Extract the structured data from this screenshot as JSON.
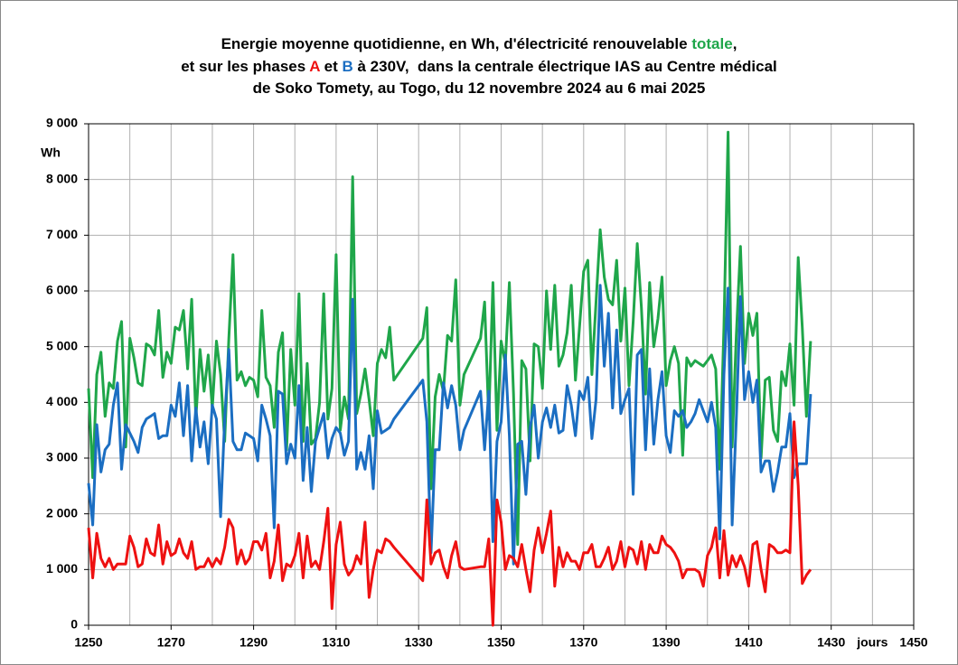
{
  "chart_data": {
    "type": "line",
    "title_lines": [
      [
        "Energie moyenne quotidienne, en Wh, d'électricité renouvelable ",
        "totale",
        ","
      ],
      [
        "et sur les phases ",
        "A",
        " et ",
        "B",
        " à 230V,  dans la centrale électrique IAS au Centre médical"
      ],
      [
        "de Soko Tomety, au Togo, du 12 novembre 2024 au 6 mai 2025"
      ]
    ],
    "ylabel": "Wh",
    "xlabel": "jours",
    "xlim": [
      1250,
      1450
    ],
    "xticks": [
      1250,
      1270,
      1290,
      1310,
      1330,
      1350,
      1370,
      1390,
      1410,
      1430,
      1450
    ],
    "xminor": [
      1260,
      1280,
      1300,
      1320,
      1340,
      1360,
      1380,
      1400,
      1420,
      1440
    ],
    "ylim": [
      0,
      9000
    ],
    "yticks": [
      0,
      {
        "value": 1000,
        "label": "1 000"
      },
      {
        "value": 2000,
        "label": "2 000"
      },
      {
        "value": 3000,
        "label": "3 000"
      },
      {
        "value": 4000,
        "label": "4 000"
      },
      {
        "value": 5000,
        "label": "5 000"
      },
      {
        "value": 6000,
        "label": "6 000"
      },
      {
        "value": 7000,
        "label": "7 000"
      },
      {
        "value": 8000,
        "label": "8 000"
      },
      {
        "value": 9000,
        "label": "9 000"
      }
    ],
    "grid": true,
    "x": [
      1250,
      1251,
      1252,
      1253,
      1254,
      1255,
      1256,
      1257,
      1258,
      1259,
      1260,
      1261,
      1262,
      1263,
      1264,
      1265,
      1266,
      1267,
      1268,
      1269,
      1270,
      1271,
      1272,
      1273,
      1274,
      1275,
      1276,
      1277,
      1278,
      1279,
      1280,
      1281,
      1282,
      1283,
      1284,
      1285,
      1286,
      1287,
      1288,
      1289,
      1290,
      1291,
      1292,
      1293,
      1294,
      1295,
      1296,
      1297,
      1298,
      1299,
      1300,
      1301,
      1302,
      1303,
      1304,
      1305,
      1306,
      1307,
      1308,
      1309,
      1310,
      1311,
      1312,
      1313,
      1314,
      1315,
      1316,
      1317,
      1318,
      1319,
      1320,
      1321,
      1322,
      1323,
      1324,
      1331,
      1332,
      1333,
      1334,
      1335,
      1336,
      1337,
      1338,
      1339,
      1340,
      1341,
      1345,
      1346,
      1347,
      1348,
      1349,
      1350,
      1351,
      1352,
      1353,
      1354,
      1355,
      1356,
      1357,
      1358,
      1359,
      1360,
      1361,
      1362,
      1363,
      1364,
      1365,
      1366,
      1367,
      1368,
      1369,
      1370,
      1371,
      1372,
      1373,
      1374,
      1375,
      1376,
      1377,
      1378,
      1379,
      1380,
      1381,
      1382,
      1383,
      1384,
      1385,
      1386,
      1387,
      1388,
      1389,
      1390,
      1391,
      1392,
      1393,
      1394,
      1395,
      1396,
      1397,
      1398,
      1399,
      1400,
      1401,
      1402,
      1403,
      1404,
      1405,
      1406,
      1407,
      1408,
      1409,
      1410,
      1411,
      1412,
      1413,
      1414,
      1415,
      1416,
      1417,
      1418,
      1419,
      1420,
      1421,
      1422,
      1423,
      1424,
      1425
    ],
    "series": [
      {
        "color": "#1fa64a",
        "values": [
          4250,
          2650,
          4500,
          4900,
          3750,
          4350,
          4250,
          5100,
          5450,
          3200,
          5150,
          4800,
          4350,
          4300,
          5050,
          5000,
          4850,
          5650,
          4450,
          4900,
          4700,
          5350,
          5300,
          5650,
          4600,
          5850,
          3700,
          4950,
          4200,
          4850,
          3900,
          5100,
          4500,
          3300,
          5150,
          6650,
          4400,
          4550,
          4300,
          4450,
          4400,
          4100,
          5650,
          4450,
          4300,
          3550,
          4900,
          5250,
          3150,
          4950,
          3950,
          5950,
          3300,
          4700,
          3250,
          3350,
          4000,
          5950,
          3700,
          4250,
          6650,
          3500,
          4100,
          3700,
          8050,
          3800,
          4150,
          4600,
          4050,
          3400,
          4700,
          4950,
          4800,
          5350,
          4400,
          5150,
          5700,
          2450,
          4100,
          4500,
          4200,
          5200,
          5100,
          6200,
          3950,
          4500,
          5150,
          5800,
          3700,
          6150,
          3500,
          5100,
          4700,
          6150,
          4150,
          1450,
          4750,
          4600,
          2950,
          5050,
          5000,
          4250,
          6000,
          4950,
          6100,
          4650,
          4850,
          5250,
          6100,
          4400,
          5350,
          6350,
          6550,
          4500,
          5800,
          7100,
          6250,
          5850,
          5750,
          6550,
          5100,
          6050,
          4300,
          5450,
          6850,
          5700,
          4150,
          6150,
          5000,
          5500,
          6250,
          4300,
          4750,
          5000,
          4700,
          3050,
          4800,
          4650,
          4750,
          4700,
          4650,
          4750,
          4850,
          4600,
          2800,
          5350,
          8850,
          3200,
          5200,
          6800,
          4700,
          5600,
          5200,
          5600,
          3000,
          4400,
          4450,
          3500,
          3300,
          4550,
          4300,
          5050,
          3950,
          6600,
          5350,
          3750,
          5100
        ]
      },
      {
        "color": "#1b6ec2",
        "values": [
          2550,
          1800,
          3600,
          2750,
          3150,
          3250,
          3950,
          4350,
          2800,
          3600,
          3450,
          3300,
          3100,
          3550,
          3700,
          3750,
          3800,
          3350,
          3400,
          3400,
          3950,
          3750,
          4350,
          3400,
          4300,
          2950,
          3900,
          3200,
          3650,
          2900,
          3950,
          3700,
          1950,
          3700,
          4950,
          3300,
          3150,
          3150,
          3450,
          3400,
          3350,
          2950,
          3950,
          3700,
          3400,
          1750,
          4200,
          4150,
          2900,
          3250,
          3000,
          4300,
          2600,
          3550,
          2400,
          3300,
          3550,
          3800,
          3000,
          3350,
          3550,
          3450,
          3050,
          3300,
          5850,
          2800,
          3100,
          2800,
          3400,
          2450,
          3850,
          3450,
          3500,
          3550,
          3700,
          4400,
          3650,
          1300,
          3150,
          3150,
          4350,
          3900,
          4300,
          3950,
          3150,
          3500,
          4200,
          3150,
          4200,
          1500,
          3300,
          3650,
          4850,
          3400,
          1100,
          3250,
          3300,
          2350,
          3550,
          3950,
          3000,
          3650,
          3900,
          3550,
          3950,
          3450,
          3500,
          4300,
          3950,
          3400,
          4200,
          4050,
          4450,
          3350,
          4050,
          6100,
          4650,
          5600,
          3900,
          5300,
          3800,
          4050,
          4250,
          2350,
          4850,
          4950,
          3150,
          4600,
          3250,
          4050,
          4550,
          3400,
          3100,
          3850,
          3750,
          3850,
          3550,
          3650,
          3800,
          4050,
          3850,
          3650,
          4000,
          3550,
          1550,
          4500,
          6050,
          1800,
          3700,
          5900,
          4050,
          4550,
          4000,
          4400,
          2750,
          2950,
          2950,
          2400,
          2750,
          3200,
          3200,
          3800,
          2650,
          2900,
          2900,
          2900,
          4150
        ]
      },
      {
        "color": "#ee1111",
        "values": [
          1750,
          850,
          1650,
          1200,
          1050,
          1200,
          1000,
          1100,
          1100,
          1100,
          1600,
          1400,
          1050,
          1100,
          1550,
          1300,
          1250,
          1800,
          1100,
          1500,
          1250,
          1300,
          1550,
          1300,
          1200,
          1500,
          1000,
          1050,
          1050,
          1200,
          1050,
          1200,
          1100,
          1400,
          1900,
          1750,
          1100,
          1350,
          1100,
          1200,
          1500,
          1500,
          1350,
          1650,
          850,
          1150,
          1800,
          800,
          1100,
          1050,
          1250,
          1650,
          850,
          1600,
          1050,
          1150,
          1000,
          1500,
          2100,
          300,
          1450,
          1850,
          1100,
          900,
          1000,
          1250,
          1100,
          1850,
          500,
          1000,
          1350,
          1300,
          1550,
          1500,
          1400,
          800,
          2250,
          1100,
          1300,
          1350,
          1050,
          850,
          1250,
          1500,
          1050,
          1000,
          1050,
          1050,
          1550,
          0,
          2250,
          1850,
          1000,
          1250,
          1200,
          1050,
          1450,
          1000,
          600,
          1350,
          1750,
          1300,
          1650,
          2050,
          700,
          1400,
          1050,
          1300,
          1150,
          1150,
          1000,
          1300,
          1300,
          1450,
          1050,
          1050,
          1200,
          1400,
          1000,
          1150,
          1500,
          1050,
          1400,
          1350,
          1100,
          1500,
          1000,
          1450,
          1300,
          1300,
          1600,
          1450,
          1400,
          1300,
          1150,
          850,
          1000,
          1000,
          1000,
          950,
          700,
          1250,
          1400,
          1750,
          850,
          1700,
          900,
          1250,
          1050,
          1250,
          1050,
          700,
          1450,
          1500,
          1000,
          600,
          1450,
          1400,
          1300,
          1300,
          1350,
          1300,
          3650,
          2500,
          750,
          900,
          1000
        ]
      }
    ]
  }
}
